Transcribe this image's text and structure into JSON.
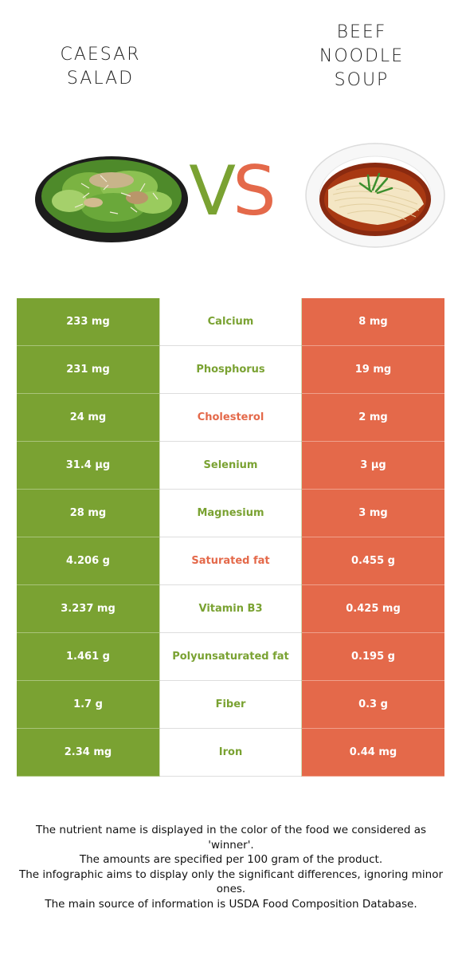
{
  "foods": {
    "left": {
      "name": "CAESAR\nSALAD",
      "color": "#7aa232"
    },
    "right": {
      "name": "BEEF\nNOODLE\nSOUP",
      "color": "#e4694a"
    }
  },
  "vs": {
    "v": "V",
    "s": "S"
  },
  "nutrients": [
    {
      "left": "233 mg",
      "name": "Calcium",
      "right": "8 mg",
      "winner": "left"
    },
    {
      "left": "231 mg",
      "name": "Phosphorus",
      "right": "19 mg",
      "winner": "left"
    },
    {
      "left": "24 mg",
      "name": "Cholesterol",
      "right": "2 mg",
      "winner": "right"
    },
    {
      "left": "31.4 µg",
      "name": "Selenium",
      "right": "3 µg",
      "winner": "left"
    },
    {
      "left": "28 mg",
      "name": "Magnesium",
      "right": "3 mg",
      "winner": "left"
    },
    {
      "left": "4.206 g",
      "name": "Saturated fat",
      "right": "0.455 g",
      "winner": "right"
    },
    {
      "left": "3.237 mg",
      "name": "Vitamin B3",
      "right": "0.425 mg",
      "winner": "left"
    },
    {
      "left": "1.461 g",
      "name": "Polyunsaturated fat",
      "right": "0.195 g",
      "winner": "left"
    },
    {
      "left": "1.7 g",
      "name": "Fiber",
      "right": "0.3 g",
      "winner": "left"
    },
    {
      "left": "2.34 mg",
      "name": "Iron",
      "right": "0.44 mg",
      "winner": "left"
    }
  ],
  "footnote": [
    "The nutrient name is displayed in the color of the food we considered as 'winner'.",
    "The amounts are specified per 100 gram of the product.",
    "The infographic aims to display only the significant differences, ignoring minor ones.",
    "The main source of information is USDA Food Composition Database."
  ]
}
